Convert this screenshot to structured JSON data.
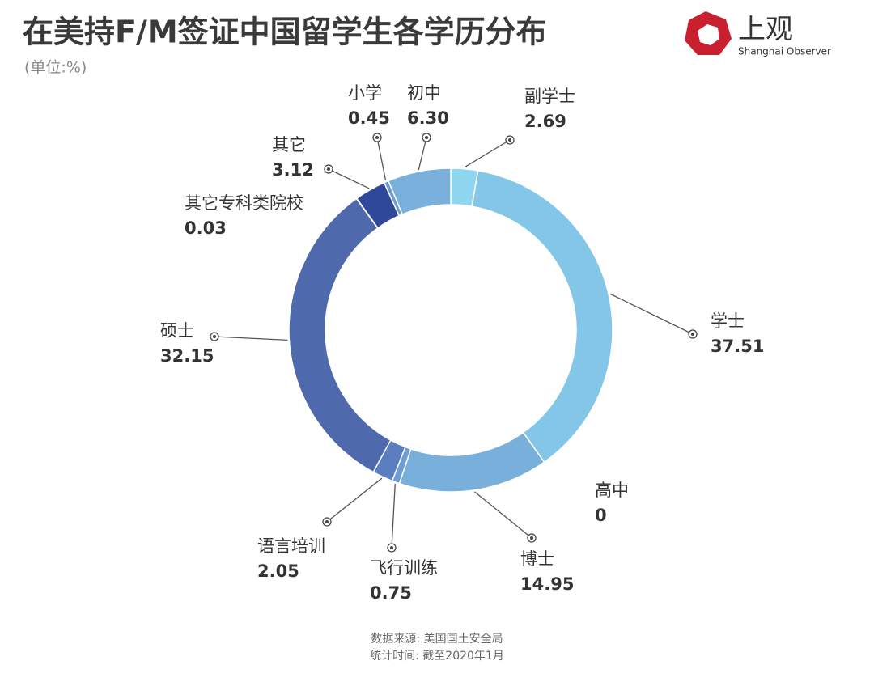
{
  "chart_data": {
    "type": "donut",
    "title": "在美持F/M签证中国留学生各学历分布",
    "subtitle": "(单位:%)",
    "categories": [
      "副学士",
      "学士",
      "高中",
      "博士",
      "飞行训练",
      "语言培训",
      "硕士",
      "其它专科类院校",
      "其它",
      "小学",
      "初中"
    ],
    "values": [
      2.69,
      37.51,
      0,
      14.95,
      0.75,
      2.05,
      32.15,
      0.03,
      3.12,
      0.45,
      6.3
    ],
    "value_labels": [
      "2.69",
      "37.51",
      "0",
      "14.95",
      "0.75",
      "2.05",
      "32.15",
      "0.03",
      "3.12",
      "0.45",
      "6.30"
    ],
    "colors": [
      "#8fd6f0",
      "#84c6e8",
      "#7fb8e0",
      "#78afdb",
      "#6f9cd2",
      "#5b7ec0",
      "#4f69ad",
      "#3f5ba2",
      "#30489a",
      "#6a9bd3",
      "#79b0dc"
    ],
    "source": "数据来源: 美国国土安全局",
    "note": "统计时间: 截至2020年1月",
    "logo_text": "上观",
    "logo_subtitle": "Shanghai Observer"
  }
}
